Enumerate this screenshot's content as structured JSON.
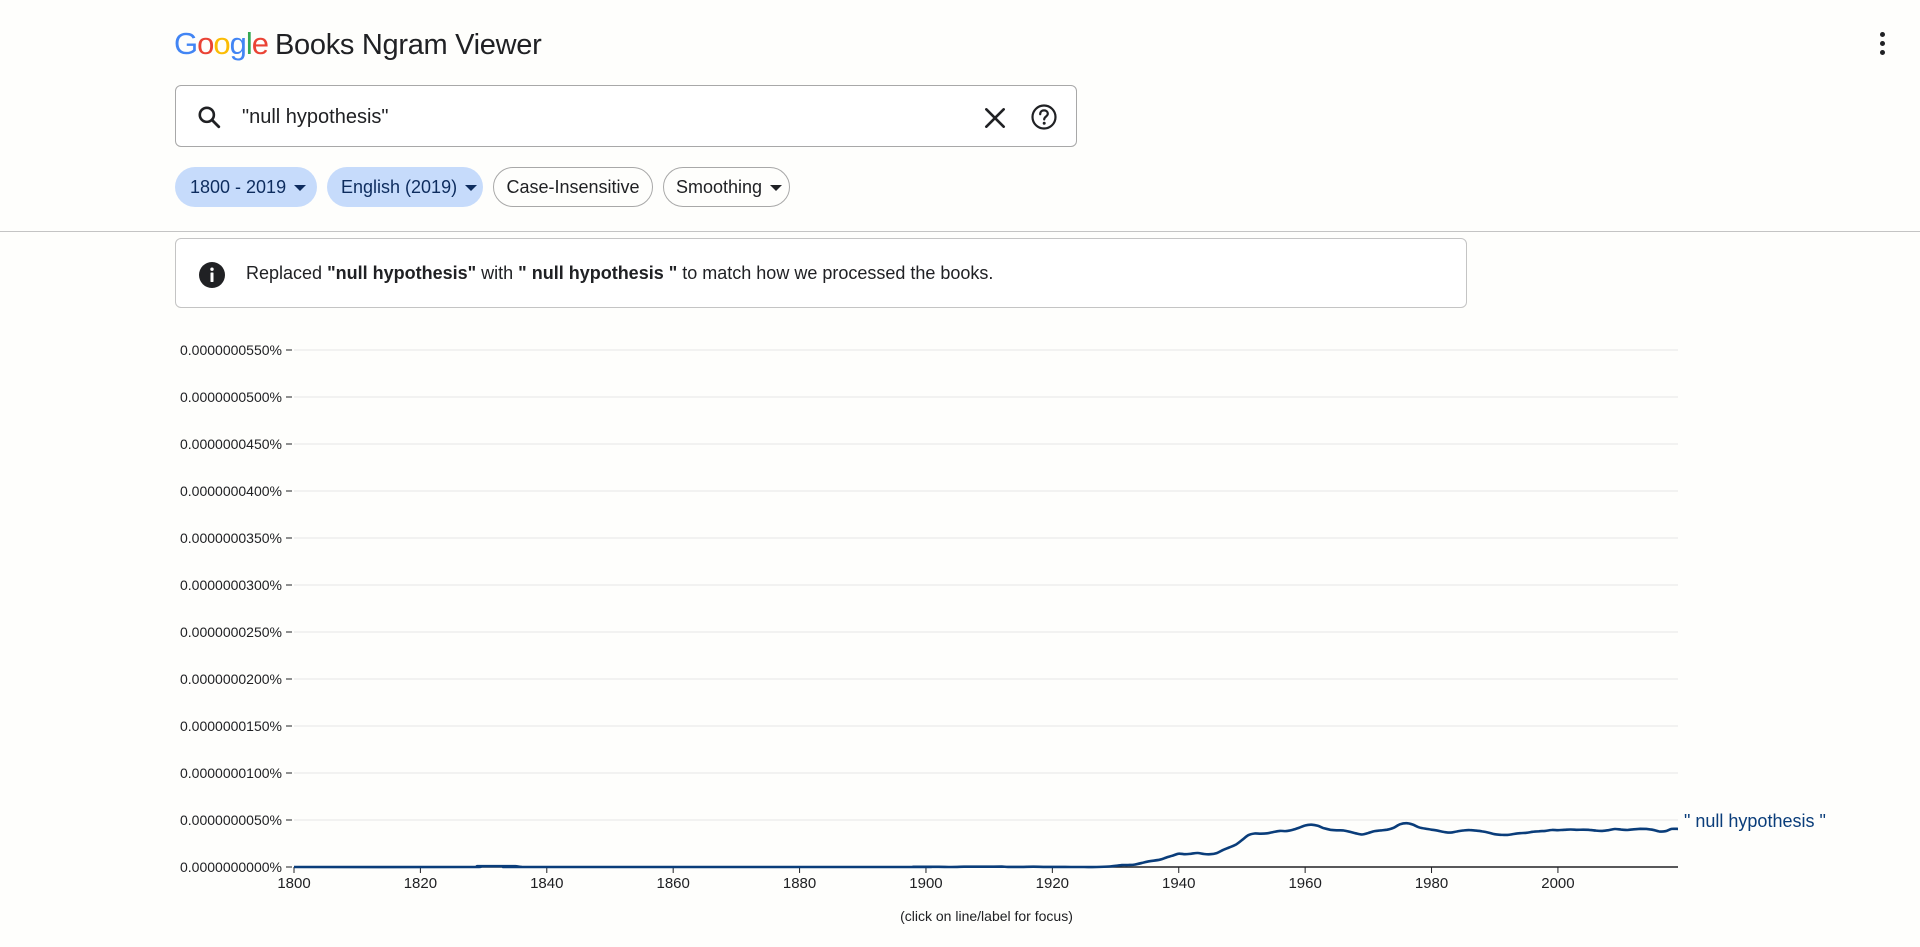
{
  "header": {
    "logo_text": "Google",
    "title": "Books Ngram Viewer",
    "logo_colors": [
      "#4285F4",
      "#EA4335",
      "#FBBC05",
      "#4285F4",
      "#34A853",
      "#EA4335"
    ]
  },
  "search": {
    "value": "\"null hypothesis\"",
    "icon": "search-icon",
    "clear_icon": "close-icon",
    "help_icon": "help-circle-icon"
  },
  "filters": {
    "year_range": "1800 - 2019",
    "corpus": "English (2019)",
    "case": "Case-Insensitive",
    "smoothing": "Smoothing"
  },
  "notice": {
    "prefix": "Replaced ",
    "original": "\"null hypothesis\"",
    "middle": " with ",
    "replacement": "\" null hypothesis \"",
    "suffix": " to match how we processed the books.",
    "icon": "info-icon"
  },
  "chart_hint": "(click on line/label for focus)",
  "colors": {
    "accent_chip": "#c6dbfb",
    "series": "#0a3d7a"
  },
  "chart_data": {
    "type": "line",
    "xlim": [
      1800,
      2019
    ],
    "ylim": [
      0,
      5.5e-07
    ],
    "grid": true,
    "y_ticks": [
      "0.0000000000%",
      "0.0000000050%",
      "0.0000000100%",
      "0.0000000150%",
      "0.0000000200%",
      "0.0000000250%",
      "0.0000000300%",
      "0.0000000350%",
      "0.0000000400%",
      "0.0000000450%",
      "0.0000000500%",
      "0.0000000550%"
    ],
    "x_ticks": [
      "1800",
      "1820",
      "1840",
      "1860",
      "1880",
      "1900",
      "1920",
      "1940",
      "1960",
      "1980",
      "2000"
    ],
    "series": [
      {
        "name": "\" null hypothesis \"",
        "color": "#0a3d7a",
        "x": [
          1800,
          1827,
          1829,
          1831,
          1833,
          1835,
          1836,
          1838,
          1896,
          1898,
          1900,
          1902,
          1904,
          1906,
          1908,
          1910,
          1912,
          1913,
          1915,
          1917,
          1919,
          1921,
          1923,
          1925,
          1927,
          1929,
          1931,
          1932,
          1933,
          1935,
          1937,
          1938,
          1939,
          1940,
          1941,
          1942,
          1943,
          1944,
          1945,
          1946,
          1947,
          1948,
          1949,
          1950,
          1951,
          1952,
          1953,
          1954,
          1955,
          1956,
          1957,
          1958,
          1959,
          1960,
          1961,
          1962,
          1963,
          1964,
          1965,
          1966,
          1967,
          1968,
          1969,
          1970,
          1971,
          1972,
          1973,
          1974,
          1975,
          1976,
          1977,
          1978,
          1979,
          1980,
          1981,
          1982,
          1983,
          1984,
          1985,
          1986,
          1987,
          1988,
          1989,
          1990,
          1991,
          1992,
          1993,
          1994,
          1995,
          1996,
          1997,
          1998,
          1999,
          2000,
          2001,
          2002,
          2003,
          2004,
          2005,
          2006,
          2007,
          2008,
          2009,
          2010,
          2011,
          2012,
          2013,
          2014,
          2015,
          2016,
          2017,
          2018,
          2019
        ],
        "values": [
          0,
          0,
          8e-10,
          8e-10,
          8e-10,
          8e-10,
          1e-10,
          0,
          0,
          2e-10,
          2e-10,
          2e-10,
          0,
          3e-10,
          3e-10,
          3e-10,
          4e-10,
          1e-10,
          1e-10,
          3e-10,
          1e-10,
          1e-10,
          0,
          0,
          0,
          5e-10,
          2e-09,
          2.1e-09,
          2.5e-09,
          5.6e-09,
          7.8e-09,
          1e-08,
          1.2e-08,
          1.42e-08,
          1.36e-08,
          1.42e-08,
          1.49e-08,
          1.38e-08,
          1.36e-08,
          1.48e-08,
          1.81e-08,
          2.08e-08,
          2.36e-08,
          2.86e-08,
          3.38e-08,
          3.56e-08,
          3.54e-08,
          3.58e-08,
          3.72e-08,
          3.84e-08,
          3.82e-08,
          3.95e-08,
          4.16e-08,
          4.42e-08,
          4.5e-08,
          4.38e-08,
          4.12e-08,
          3.96e-08,
          3.9e-08,
          3.89e-08,
          3.76e-08,
          3.58e-08,
          3.46e-08,
          3.62e-08,
          3.82e-08,
          3.89e-08,
          3.97e-08,
          4.17e-08,
          4.54e-08,
          4.66e-08,
          4.52e-08,
          4.22e-08,
          4.08e-08,
          3.97e-08,
          3.86e-08,
          3.72e-08,
          3.66e-08,
          3.78e-08,
          3.88e-08,
          3.93e-08,
          3.87e-08,
          3.79e-08,
          3.66e-08,
          3.49e-08,
          3.43e-08,
          3.41e-08,
          3.51e-08,
          3.6e-08,
          3.64e-08,
          3.74e-08,
          3.8e-08,
          3.84e-08,
          3.94e-08,
          3.92e-08,
          3.96e-08,
          3.99e-08,
          3.96e-08,
          3.97e-08,
          3.95e-08,
          3.87e-08,
          3.84e-08,
          3.92e-08,
          4.04e-08,
          3.98e-08,
          3.94e-08,
          4.01e-08,
          4.06e-08,
          4.05e-08,
          3.96e-08,
          3.79e-08,
          3.81e-08,
          4.05e-08,
          4.05e-08
        ]
      }
    ]
  }
}
